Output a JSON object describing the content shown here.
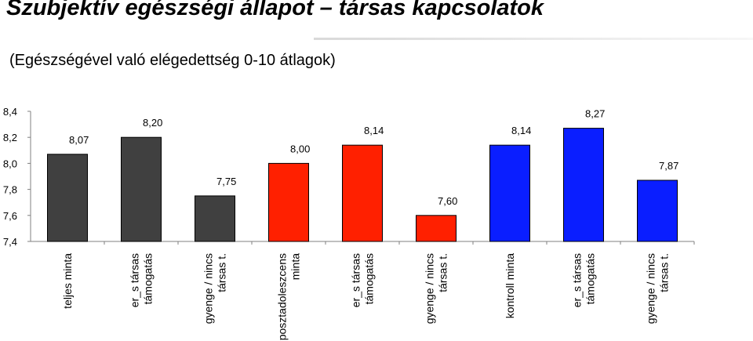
{
  "title": "Szubjektív egészségi állapot – társas kapcsolatok",
  "subtitle": "(Egészségével való elégedettség 0-10 átlagok)",
  "colors": {
    "gray_bar": "#404040",
    "red_bar": "#ff2000",
    "blue_bar": "#0a1eff",
    "axis": "#808080",
    "text": "#000000"
  },
  "chart_data": {
    "type": "bar",
    "ylim": [
      7.4,
      8.4
    ],
    "y_ticks": [
      "8,4",
      "8,2",
      "8,0",
      "7,8",
      "7,6",
      "7,4"
    ],
    "grid": false,
    "legend": "none",
    "categories": [
      [
        "teljes minta"
      ],
      [
        "er_s társas",
        "támogatás"
      ],
      [
        "gyenge / nincs",
        "társas t."
      ],
      [
        "posztadoleszcens",
        "minta"
      ],
      [
        "er_s társas",
        "támogatás"
      ],
      [
        "gyenge / nincs",
        "társas t."
      ],
      [
        "kontroll minta"
      ],
      [
        "er_s társas",
        "támogatás"
      ],
      [
        "gyenge / nincs",
        "társas t."
      ]
    ],
    "values": [
      8.07,
      8.2,
      7.75,
      8.0,
      8.14,
      7.6,
      8.14,
      8.27,
      7.87
    ],
    "data_labels": [
      "8,07",
      "8,20",
      "7,75",
      "8,00",
      "8,14",
      "7,60",
      "8,14",
      "8,27",
      "7,87"
    ],
    "bar_groups": [
      "gray",
      "gray",
      "gray",
      "red",
      "red",
      "red",
      "blue",
      "blue",
      "blue"
    ]
  }
}
